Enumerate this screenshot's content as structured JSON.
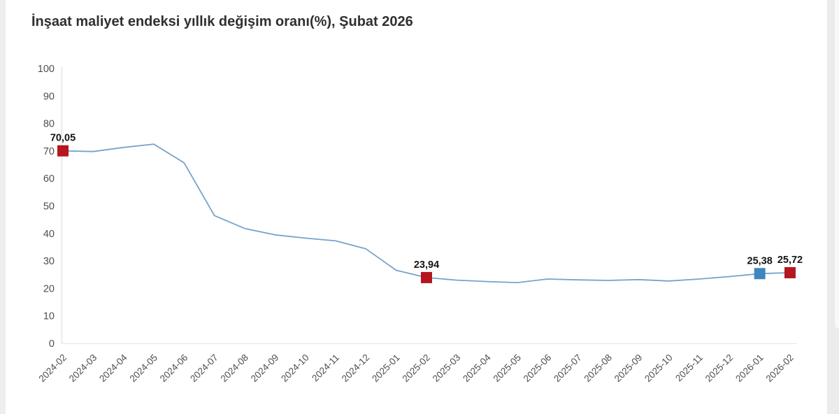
{
  "page": {
    "background": "#ffffff",
    "left_gutter_color": "#eeeeee",
    "right_gutter_color": "#ebebeb"
  },
  "chart_data": {
    "type": "line",
    "title": "İnşaat maliyet endeksi yıllık değişim oranı(%), Şubat 2026",
    "xlabel": "",
    "ylabel": "",
    "ylim": [
      0,
      100
    ],
    "yticks": [
      0,
      10,
      20,
      30,
      40,
      50,
      60,
      70,
      80,
      90,
      100
    ],
    "grid": false,
    "legend": false,
    "categories": [
      "2024-02",
      "2024-03",
      "2024-04",
      "2024-05",
      "2024-06",
      "2024-07",
      "2024-08",
      "2024-09",
      "2024-10",
      "2024-11",
      "2024-12",
      "2025-01",
      "2025-02",
      "2025-03",
      "2025-04",
      "2025-05",
      "2025-06",
      "2025-07",
      "2025-08",
      "2025-09",
      "2025-10",
      "2025-11",
      "2025-12",
      "2026-01",
      "2026-02"
    ],
    "values": [
      70.05,
      69.8,
      71.3,
      72.5,
      65.7,
      46.5,
      41.8,
      39.5,
      38.3,
      37.3,
      34.4,
      26.6,
      23.94,
      23.0,
      22.5,
      22.1,
      23.4,
      23.1,
      22.9,
      23.2,
      22.7,
      23.4,
      24.3,
      25.38,
      25.72
    ],
    "line_color": "#76a3cb",
    "axis_color": "#d9d9d9",
    "baseline_color": "#e6e6e6",
    "tick_label_color": "#4f4f4f",
    "data_label_color": "#141414",
    "markers": [
      {
        "category": "2024-02",
        "index": 0,
        "label": "70,05",
        "value": 70.05,
        "color": "#b5161f",
        "shape": "square"
      },
      {
        "category": "2025-02",
        "index": 12,
        "label": "23,94",
        "value": 23.94,
        "color": "#b5161f",
        "shape": "square"
      },
      {
        "category": "2026-01",
        "index": 23,
        "label": "25,38",
        "value": 25.38,
        "color": "#3d87c0",
        "shape": "square"
      },
      {
        "category": "2026-02",
        "index": 24,
        "label": "25,72",
        "value": 25.72,
        "color": "#b5161f",
        "shape": "square"
      }
    ]
  }
}
